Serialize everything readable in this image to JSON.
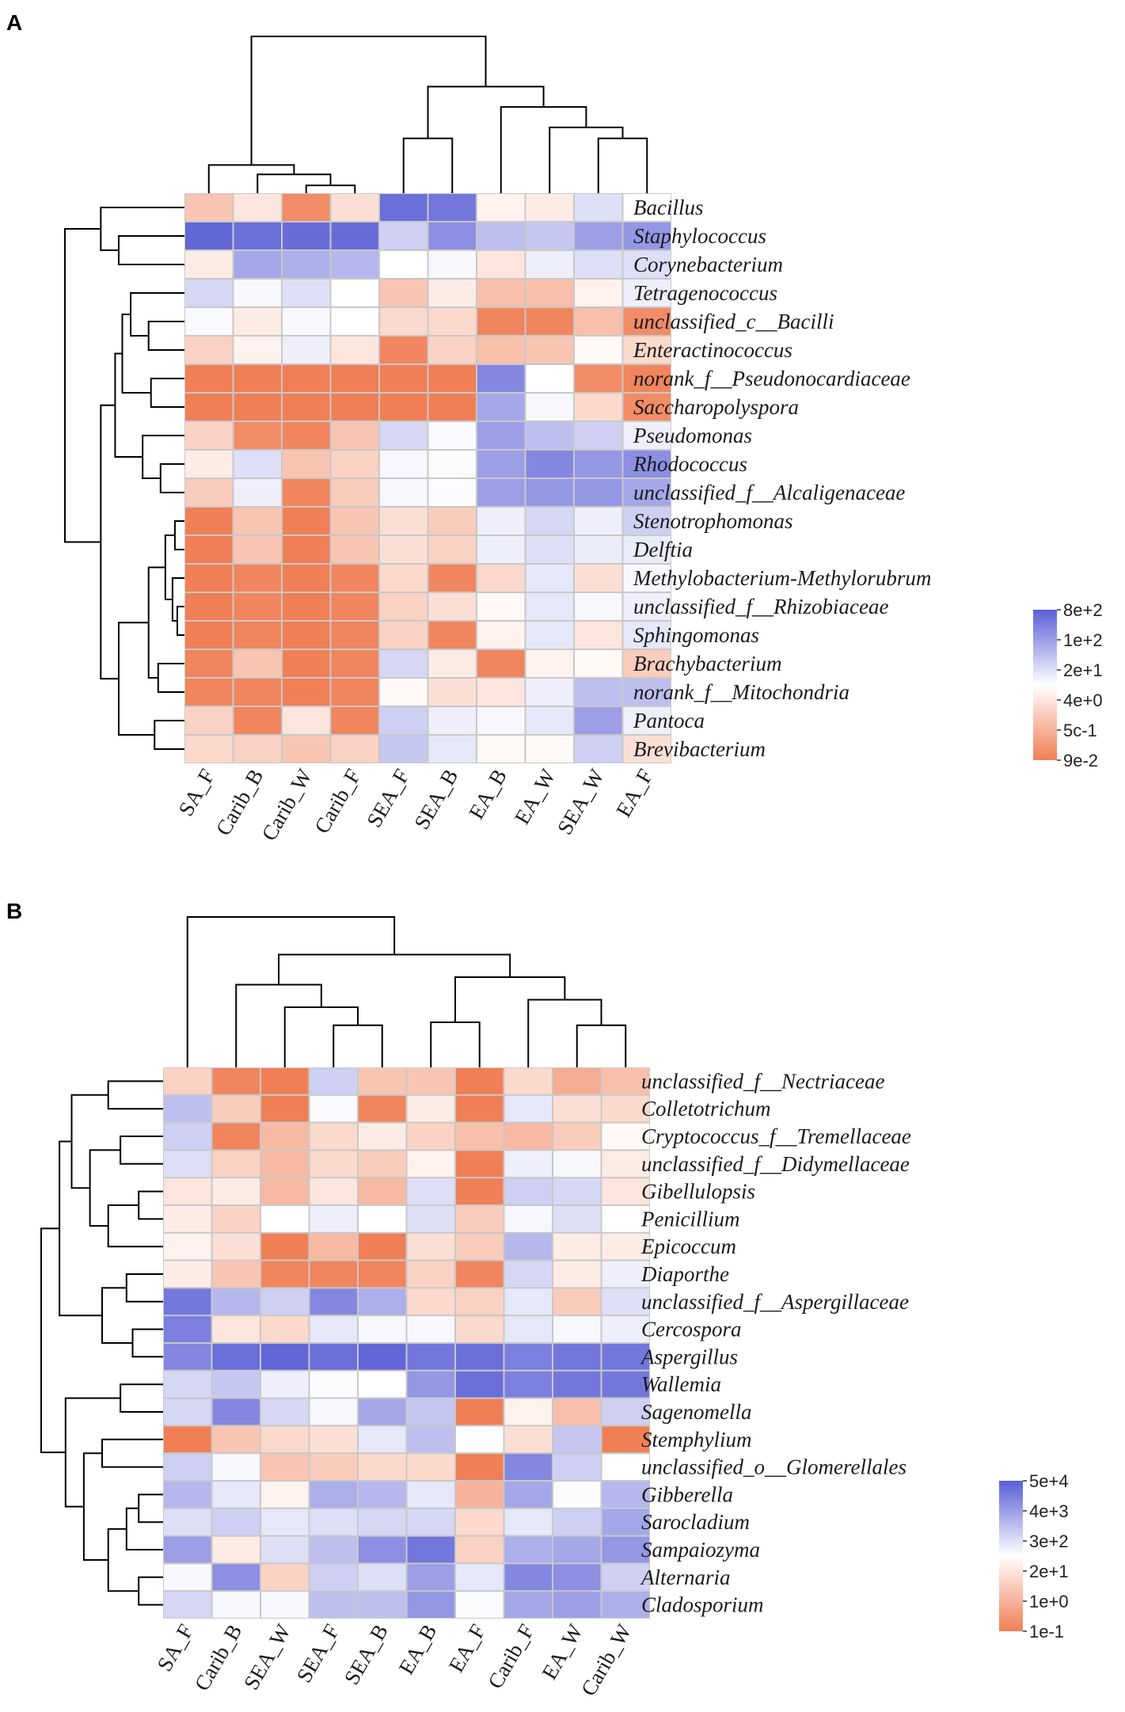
{
  "colors": {
    "low": "#f07f56",
    "mid": "#ffffff",
    "high": "#5a5fd6",
    "grid": "#c8c8c8"
  },
  "chart_data": [
    {
      "type": "heatmap",
      "panel": "A",
      "columns": [
        "SA_F",
        "Carib_B",
        "Carib_W",
        "Carib_F",
        "SEA_F",
        "SEA_B",
        "EA_B",
        "EA_W",
        "SEA_W",
        "EA_F"
      ],
      "rows": [
        "Bacillus",
        "Staphylococcus",
        "Corynebacterium",
        "Tetragenococcus",
        "unclassified_c__Bacilli",
        "Enteractinococcus",
        "norank_f__Pseudonocardiaceae",
        "Saccharopolyspora",
        "Pseudomonas",
        "Rhodococcus",
        "unclassified_f__Alcaligenaceae",
        "Stenotrophomonas",
        "Delftia",
        "Methylobacterium-Methylorubrum",
        "unclassified_f__Rhizobiaceae",
        "Sphingomonas",
        "Brachybacterium",
        "norank_f__Mitochondria",
        "Pantoca",
        "Brevibacterium"
      ],
      "values": [
        [
          -0.45,
          -0.2,
          -0.9,
          -0.25,
          0.9,
          0.85,
          -0.1,
          -0.15,
          0.2,
          0.0
        ],
        [
          0.95,
          0.9,
          0.92,
          0.92,
          0.3,
          0.7,
          0.4,
          0.35,
          0.6,
          0.65
        ],
        [
          -0.15,
          0.55,
          0.5,
          0.45,
          0.0,
          0.05,
          -0.2,
          0.1,
          0.2,
          0.2
        ],
        [
          0.25,
          0.05,
          0.2,
          0.0,
          -0.45,
          -0.15,
          -0.5,
          -0.5,
          -0.1,
          0.1
        ],
        [
          0.03,
          -0.15,
          0.05,
          0.0,
          -0.3,
          -0.3,
          -0.95,
          -0.95,
          -0.5,
          -0.9
        ],
        [
          -0.35,
          -0.1,
          0.1,
          -0.2,
          -0.95,
          -0.35,
          -0.5,
          -0.45,
          -0.05,
          -0.3
        ],
        [
          -1.0,
          -1.0,
          -1.0,
          -1.0,
          -1.0,
          -1.0,
          0.75,
          0.0,
          -0.9,
          -0.95
        ],
        [
          -1.0,
          -1.0,
          -1.0,
          -1.0,
          -1.0,
          -1.0,
          0.55,
          0.05,
          -0.3,
          -0.9
        ],
        [
          -0.35,
          -0.9,
          -0.95,
          -0.45,
          0.25,
          0.03,
          0.6,
          0.4,
          0.3,
          0.1
        ],
        [
          -0.15,
          0.2,
          -0.45,
          -0.35,
          0.05,
          0.02,
          0.6,
          0.75,
          0.65,
          0.7
        ],
        [
          -0.4,
          0.1,
          -0.95,
          -0.4,
          0.05,
          0.02,
          0.6,
          0.65,
          0.65,
          0.55
        ],
        [
          -1.0,
          -0.45,
          -1.0,
          -0.45,
          -0.25,
          -0.4,
          0.1,
          0.25,
          0.1,
          0.3
        ],
        [
          -1.0,
          -0.45,
          -1.0,
          -0.45,
          -0.25,
          -0.35,
          0.1,
          0.2,
          0.12,
          0.12
        ],
        [
          -1.0,
          -0.95,
          -1.0,
          -0.95,
          -0.3,
          -0.95,
          -0.3,
          0.15,
          -0.25,
          0.05
        ],
        [
          -1.0,
          -0.95,
          -1.0,
          -0.95,
          -0.35,
          -0.25,
          -0.05,
          0.15,
          0.05,
          0.1
        ],
        [
          -1.0,
          -0.95,
          -1.0,
          -0.95,
          -0.35,
          -0.95,
          -0.1,
          0.15,
          -0.2,
          0.15
        ],
        [
          -0.95,
          -0.45,
          -1.0,
          -0.95,
          0.25,
          -0.15,
          -0.95,
          -0.1,
          -0.05,
          -0.4
        ],
        [
          -0.95,
          -0.95,
          -1.0,
          -0.95,
          -0.05,
          -0.25,
          -0.2,
          0.1,
          0.4,
          0.4
        ],
        [
          -0.35,
          -0.95,
          -0.2,
          -0.95,
          0.3,
          0.1,
          0.05,
          0.15,
          0.6,
          0.1
        ],
        [
          -0.3,
          -0.35,
          -0.45,
          -0.35,
          0.35,
          0.15,
          -0.05,
          -0.05,
          0.3,
          -0.25
        ]
      ],
      "legend_ticks": [
        "8e+2",
        "1e+2",
        "2e+1",
        "4e+0",
        "5c-1",
        "9e-2"
      ]
    },
    {
      "type": "heatmap",
      "panel": "B",
      "columns": [
        "SA_F",
        "Carib_B",
        "SEA_W",
        "SEA_F",
        "SEA_B",
        "EA_B",
        "EA_F",
        "Carib_F",
        "EA_W",
        "Carib_W"
      ],
      "rows": [
        "unclassified_f__Nectriaceae",
        "Colletotrichum",
        "Cryptococcus_f__Tremellaceae",
        "unclassified_f__Didymellaceae",
        "Gibellulopsis",
        "Penicillium",
        "Epicoccum",
        "Diaporthe",
        "unclassified_f__Aspergillaceae",
        "Cercospora",
        "Aspergillus",
        "Wallemia",
        "Sagenomella",
        "Stemphylium",
        "unclassified_o__Glomerellales",
        "Gibberella",
        "Sarocladium",
        "Sampaiozyma",
        "Alternaria",
        "Cladosporium"
      ],
      "values": [
        [
          -0.35,
          -0.95,
          -1.0,
          0.3,
          -0.45,
          -0.45,
          -1.0,
          -0.3,
          -0.65,
          -0.5
        ],
        [
          0.4,
          -0.4,
          -1.0,
          0.03,
          -0.95,
          -0.15,
          -1.0,
          0.15,
          -0.25,
          -0.3
        ],
        [
          0.3,
          -0.95,
          -0.55,
          -0.3,
          -0.15,
          -0.35,
          -0.5,
          -0.55,
          -0.4,
          -0.05
        ],
        [
          0.2,
          -0.35,
          -0.55,
          -0.3,
          -0.4,
          -0.1,
          -1.0,
          0.1,
          0.05,
          -0.15
        ],
        [
          -0.2,
          -0.15,
          -0.55,
          -0.2,
          -0.55,
          0.2,
          -1.0,
          0.3,
          0.25,
          -0.2
        ],
        [
          -0.15,
          -0.35,
          0.0,
          0.1,
          0.0,
          0.2,
          -0.4,
          0.05,
          0.2,
          0.0
        ],
        [
          -0.1,
          -0.25,
          -1.0,
          -0.55,
          -1.0,
          -0.25,
          -0.4,
          0.45,
          -0.15,
          -0.15
        ],
        [
          -0.15,
          -0.45,
          -0.95,
          -0.95,
          -0.95,
          -0.35,
          -0.95,
          0.25,
          -0.15,
          0.1
        ],
        [
          0.85,
          0.45,
          0.3,
          0.75,
          0.5,
          -0.3,
          -0.35,
          0.15,
          -0.4,
          0.2
        ],
        [
          0.8,
          -0.2,
          -0.3,
          0.15,
          0.05,
          0.05,
          -0.3,
          0.15,
          0.05,
          0.1
        ],
        [
          0.75,
          0.9,
          0.95,
          0.9,
          0.95,
          0.85,
          0.9,
          0.8,
          0.85,
          0.85
        ],
        [
          0.25,
          0.35,
          0.1,
          0.02,
          0.0,
          0.65,
          0.9,
          0.8,
          0.85,
          0.85
        ],
        [
          0.25,
          0.75,
          0.25,
          0.05,
          0.55,
          0.35,
          -1.0,
          -0.1,
          -0.5,
          0.3
        ],
        [
          -1.0,
          -0.45,
          -0.3,
          -0.25,
          0.15,
          0.4,
          0.0,
          -0.25,
          0.35,
          -1.0
        ],
        [
          0.3,
          0.05,
          -0.45,
          -0.4,
          -0.3,
          -0.3,
          -1.0,
          0.75,
          0.3,
          0.0
        ],
        [
          0.45,
          0.15,
          -0.1,
          0.5,
          0.45,
          0.15,
          -0.6,
          0.55,
          0.02,
          0.45
        ],
        [
          0.2,
          0.3,
          0.15,
          0.2,
          0.25,
          0.25,
          -0.3,
          0.15,
          0.3,
          0.55
        ],
        [
          0.6,
          -0.15,
          0.2,
          0.4,
          0.7,
          0.85,
          -0.35,
          0.5,
          0.55,
          0.65
        ],
        [
          0.05,
          0.7,
          -0.35,
          0.3,
          0.2,
          0.6,
          0.15,
          0.75,
          0.7,
          0.3
        ],
        [
          0.25,
          0.05,
          0.05,
          0.4,
          0.4,
          0.65,
          0.02,
          0.55,
          0.6,
          0.5
        ]
      ],
      "legend_ticks": [
        "5e+4",
        "4e+3",
        "3e+2",
        "2e+1",
        "1e+0",
        "1e-1"
      ]
    }
  ],
  "panels": [
    {
      "letter": "A",
      "col_tree": {
        "leaf_order": [
          "SA_F",
          "Carib_B",
          "Carib_W",
          "Carib_F",
          "SEA_F",
          "SEA_B",
          "EA_B",
          "EA_W",
          "SEA_W",
          "EA_F"
        ],
        "merges": [
          [
            2,
            3,
            0.05
          ],
          [
            1,
            10,
            0.12
          ],
          [
            0,
            11,
            0.18
          ],
          [
            8,
            9,
            0.35
          ],
          [
            7,
            13,
            0.42
          ],
          [
            6,
            14,
            0.55
          ],
          [
            4,
            5,
            0.35
          ],
          [
            16,
            15,
            0.68
          ],
          [
            12,
            17,
            1.0
          ]
        ]
      },
      "row_tree": {
        "leaf_order": [
          "Bacillus",
          "Staphylococcus",
          "Corynebacterium",
          "Tetragenococcus",
          "unclassified_c__Bacilli",
          "Enteractinococcus",
          "norank_f__Pseudonocardiaceae",
          "Saccharopolyspora",
          "Pseudomonas",
          "Rhodococcus",
          "unclassified_f__Alcaligenaceae",
          "Stenotrophomonas",
          "Delftia",
          "Methylobacterium-Methylorubrum",
          "unclassified_f__Rhizobiaceae",
          "Sphingomonas",
          "Brachybacterium",
          "norank_f__Mitochondria",
          "Pantoca",
          "Brevibacterium"
        ],
        "merges": [
          [
            1,
            2,
            0.55
          ],
          [
            0,
            20,
            0.7
          ],
          [
            4,
            5,
            0.3
          ],
          [
            3,
            22,
            0.45
          ],
          [
            6,
            7,
            0.28
          ],
          [
            23,
            24,
            0.52
          ],
          [
            9,
            10,
            0.2
          ],
          [
            8,
            26,
            0.35
          ],
          [
            25,
            27,
            0.58
          ],
          [
            11,
            12,
            0.08
          ],
          [
            14,
            15,
            0.06
          ],
          [
            13,
            30,
            0.1
          ],
          [
            29,
            31,
            0.16
          ],
          [
            16,
            17,
            0.22
          ],
          [
            32,
            33,
            0.3
          ],
          [
            18,
            19,
            0.25
          ],
          [
            34,
            35,
            0.55
          ],
          [
            28,
            36,
            0.7
          ],
          [
            21,
            37,
            1.0
          ]
        ]
      }
    },
    {
      "letter": "B",
      "col_tree": {
        "leaf_order": [
          "SA_F",
          "Carib_B",
          "SEA_W",
          "SEA_F",
          "SEA_B",
          "EA_B",
          "EA_F",
          "Carib_F",
          "EA_W",
          "Carib_W"
        ],
        "merges": [
          [
            3,
            4,
            0.28
          ],
          [
            2,
            10,
            0.4
          ],
          [
            1,
            11,
            0.55
          ],
          [
            8,
            9,
            0.28
          ],
          [
            7,
            13,
            0.45
          ],
          [
            5,
            6,
            0.3
          ],
          [
            15,
            14,
            0.6
          ],
          [
            12,
            16,
            0.75
          ],
          [
            0,
            17,
            1.0
          ]
        ]
      },
      "row_tree": {
        "leaf_order": [
          "unclassified_f__Nectriaceae",
          "Colletotrichum",
          "Cryptococcus_f__Tremellaceae",
          "unclassified_f__Didymellaceae",
          "Gibellulopsis",
          "Penicillium",
          "Epicoccum",
          "Diaporthe",
          "unclassified_f__Aspergillaceae",
          "Cercospora",
          "Aspergillus",
          "Wallemia",
          "Sagenomella",
          "Stemphylium",
          "unclassified_o__Glomerellales",
          "Gibberella",
          "Sarocladium",
          "Sampaiozyma",
          "Alternaria",
          "Cladosporium"
        ],
        "merges": [
          [
            0,
            1,
            0.45
          ],
          [
            2,
            3,
            0.35
          ],
          [
            4,
            5,
            0.2
          ],
          [
            22,
            6,
            0.45
          ],
          [
            21,
            23,
            0.6
          ],
          [
            20,
            24,
            0.75
          ],
          [
            7,
            8,
            0.3
          ],
          [
            9,
            10,
            0.25
          ],
          [
            26,
            27,
            0.5
          ],
          [
            25,
            28,
            0.85
          ],
          [
            11,
            12,
            0.35
          ],
          [
            13,
            14,
            0.5
          ],
          [
            15,
            16,
            0.2
          ],
          [
            32,
            17,
            0.3
          ],
          [
            18,
            19,
            0.2
          ],
          [
            33,
            34,
            0.45
          ],
          [
            31,
            35,
            0.65
          ],
          [
            30,
            36,
            0.8
          ],
          [
            29,
            37,
            1.0
          ]
        ]
      }
    }
  ]
}
